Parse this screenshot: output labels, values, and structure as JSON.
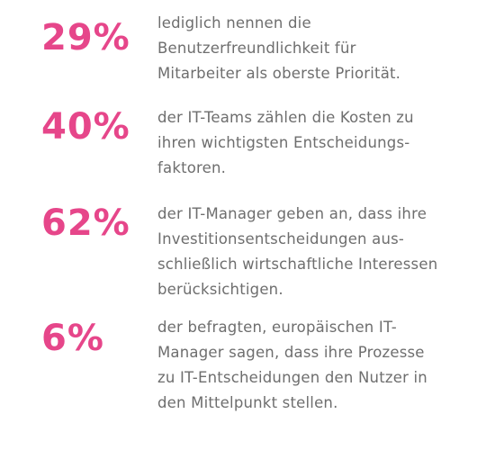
{
  "accent_color": "#e6468a",
  "text_color": "#6e6e6e",
  "stats": [
    {
      "value": "29%",
      "lines": [
        "lediglich nennen die",
        "Benutzerfreundlichkeit für",
        "Mitarbeiter als oberste Priorität."
      ]
    },
    {
      "value": "40%",
      "lines": [
        "der IT-Teams zählen die Kosten zu",
        "ihren wichtigsten Entscheidungs-",
        "faktoren."
      ]
    },
    {
      "value": "62%",
      "lines": [
        "der IT-Manager geben an, dass ihre",
        "Investitionsentscheidungen aus-",
        "schließlich wirtschaftliche Interessen",
        "berücksichtigen."
      ]
    },
    {
      "value": "6%",
      "lines": [
        "der befragten, europäischen IT-",
        "Manager sagen, dass ihre Prozesse",
        "zu IT-Entscheidungen den Nutzer in",
        "den Mittelpunkt stellen."
      ]
    }
  ]
}
